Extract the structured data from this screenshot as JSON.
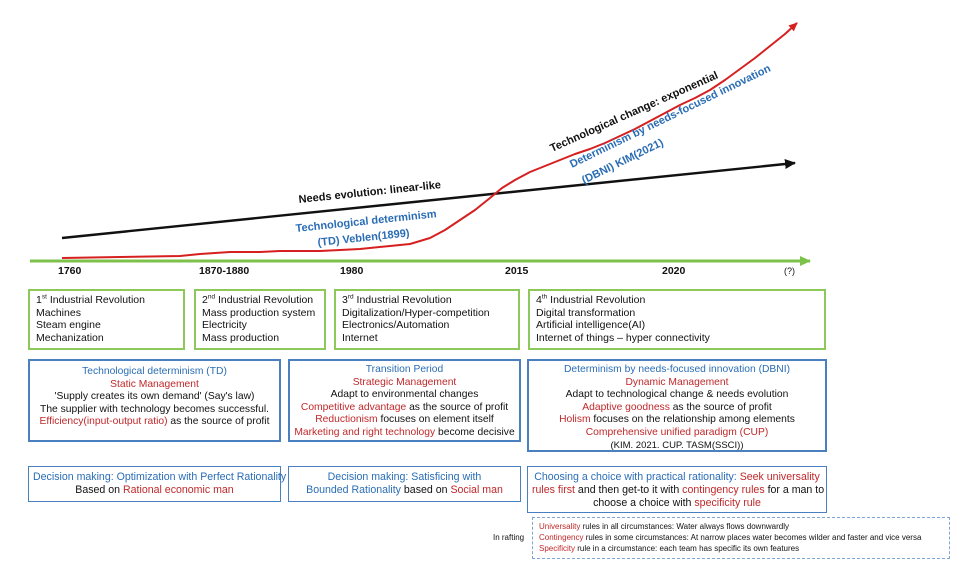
{
  "timeline": {
    "years": [
      "1760",
      "1870-1880",
      "1980",
      "2015",
      "2020",
      "(?)"
    ]
  },
  "curve_labels": {
    "tech_change": "Technological change: exponential",
    "dbni_line1": "Determinism by needs-focused innovation",
    "dbni_line2": "(DBNI) KIM(2021)",
    "needs": "Needs evolution: linear-like",
    "td_line1": "Technological determinism",
    "td_line2": "(TD) Veblen(1899)"
  },
  "revolutions": [
    {
      "num": "1",
      "sup": "st",
      "title": " Industrial Revolution",
      "items": [
        "Machines",
        "Steam engine",
        "Mechanization"
      ]
    },
    {
      "num": "2",
      "sup": "nd",
      "title": " Industrial Revolution",
      "items": [
        "Mass production system",
        "Electricity",
        "Mass production"
      ]
    },
    {
      "num": "3",
      "sup": "rd",
      "title": " Industrial Revolution",
      "items": [
        "Digitalization/Hyper-competition",
        "Electronics/Automation",
        "Internet"
      ]
    },
    {
      "num": "4",
      "sup": "th",
      "title": " Industrial Revolution",
      "items": [
        "Digital transformation",
        "Artificial intelligence(AI)",
        "Internet of things – hyper connectivity"
      ]
    }
  ],
  "paradigms": {
    "td": {
      "title": "Technological determinism (TD)",
      "mgmt": "Static Management",
      "l1": "'Supply creates its own demand' (Say's law)",
      "l2": "The supplier with technology becomes successful.",
      "l3_red": "Efficiency(input-output ratio)",
      "l3_rest": " as the source of profit"
    },
    "transition": {
      "title": "Transition Period",
      "mgmt": "Strategic Management",
      "l1": "Adapt to environmental changes",
      "l2_red": "Competitive advantage",
      "l2_rest": " as the source of profit",
      "l3_red": "Reductionism",
      "l3_rest": " focuses on element itself",
      "l4_red": "Marketing and right technology",
      "l4_rest": " become decisive"
    },
    "dbni": {
      "title": "Determinism by needs-focused innovation (DBNI)",
      "mgmt": "Dynamic Management",
      "l1": "Adapt to technological change & needs evolution",
      "l2_red": "Adaptive goodness",
      "l2_rest": " as the source of profit",
      "l3_red": "Holism",
      "l3_rest": " focuses on the relationship among elements",
      "l4": "Comprehensive unified paradigm (CUP)",
      "l5": "(KIM. 2021. CUP. TASM(SSCI))"
    }
  },
  "decisions": {
    "d1_blue": "Decision making: Optimization with Perfect Rationality",
    "d1_pre": "Based on ",
    "d1_red": "Rational economic man",
    "d2_blue1": "Decision making: Satisficing with",
    "d2_blue2": "Bounded Rationality",
    "d2_mid": " based on ",
    "d2_red": "Social man",
    "d3_blue": "Choosing a choice with practical rationality: ",
    "d3_red1": "Seek universality",
    "d3_red2": "rules first",
    "d3_mid": " and then get-to it with ",
    "d3_red3": "contingency rules",
    "d3_tail": " for a man to",
    "d3_l3_pre": "choose a choice with ",
    "d3_l3_red": "specificity rule"
  },
  "rafting": {
    "label": "In rafting",
    "r1_red": "Universality",
    "r1_rest": " rules in all circumstances:  Water always flows downwardly",
    "r2_red": "Contingency",
    "r2_rest": "  rules in some circumstances:  At narrow places water becomes wilder and faster and vice versa",
    "r3_red": "Specificity",
    "r3_rest": "  rule in a circumstance:  each team has specific its own features"
  },
  "colors": {
    "tech_curve": "#d6201f",
    "needs_line": "#111111",
    "timeline": "#7cc24a",
    "box_green": "#8cc85a",
    "box_blue": "#4a7fc0",
    "text_blue": "#2a6db5",
    "text_red": "#c0282a"
  }
}
